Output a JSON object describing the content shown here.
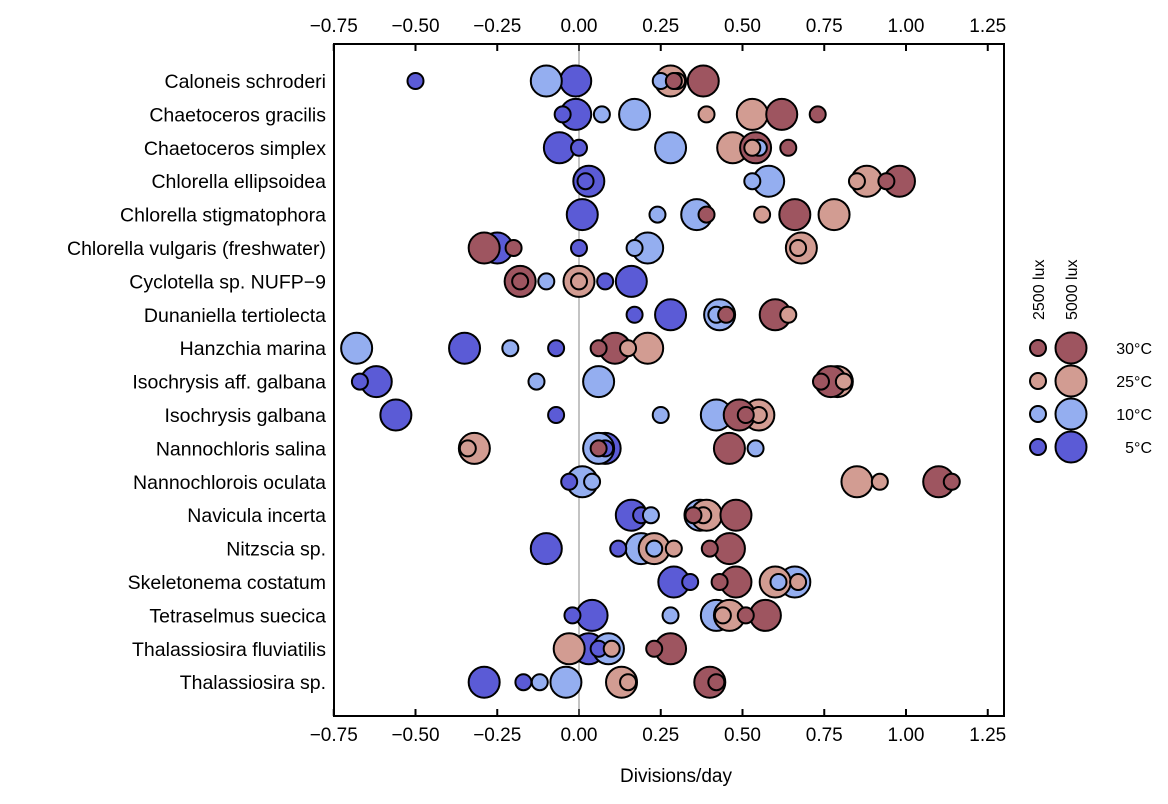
{
  "chart_data": {
    "type": "scatter",
    "title": "",
    "xlabel": "Divisions/day",
    "ylabel": "",
    "xlim": [
      -0.75,
      1.3
    ],
    "x_ticks": [
      "−0.75",
      "−0.50",
      "−0.25",
      "0.00",
      "0.25",
      "0.50",
      "0.75",
      "1.00",
      "1.25"
    ],
    "x_tick_values": [
      -0.75,
      -0.5,
      -0.25,
      0,
      0.25,
      0.5,
      0.75,
      1.0,
      1.25
    ],
    "reference_line_x": 0,
    "grid": false,
    "legend": {
      "placement": "right",
      "size_headers": [
        "2500 lux",
        "5000 lux"
      ],
      "entries": [
        {
          "label": "30°C",
          "key": "30",
          "color": "#9e5560"
        },
        {
          "label": "25°C",
          "key": "25",
          "color": "#d29c92"
        },
        {
          "label": "10°C",
          "key": "10",
          "color": "#94aef0"
        },
        {
          "label": "5°C",
          "key": "5",
          "color": "#5b5bd6"
        }
      ]
    },
    "categories": [
      "Caloneis schroderi",
      "Chaetoceros gracilis",
      "Chaetoceros simplex",
      "Chlorella ellipsoidea",
      "Chlorella stigmatophora",
      "Chlorella vulgaris (freshwater)",
      "Cyclotella sp. NUFP−9",
      "Dunaniella tertiolecta",
      "Hanzchia marina",
      "Isochrysis aff. galbana",
      "Isochrysis galbana",
      "Nannochloris salina",
      "Nannochlorois oculata",
      "Navicula incerta",
      "Nitzscia sp.",
      "Skeletonema costatum",
      "Tetraselmus suecica",
      "Thalassiosira fluviatilis",
      "Thalassiosira sp."
    ],
    "series": [
      {
        "name": "5°C, 5000 lux",
        "temp": "5",
        "lux": 5000,
        "values": [
          -0.01,
          -0.01,
          -0.06,
          0.03,
          0.01,
          -0.25,
          0.16,
          0.28,
          -0.35,
          -0.62,
          -0.56,
          0.08,
          null,
          0.16,
          -0.1,
          0.29,
          0.04,
          0.03,
          -0.29
        ]
      },
      {
        "name": "10°C, 5000 lux",
        "temp": "10",
        "lux": 5000,
        "values": [
          -0.1,
          0.17,
          0.28,
          0.58,
          0.36,
          0.21,
          null,
          0.43,
          -0.68,
          0.06,
          0.42,
          0.06,
          0.01,
          0.37,
          0.19,
          0.66,
          0.42,
          0.09,
          -0.04
        ]
      },
      {
        "name": "25°C, 5000 lux",
        "temp": "25",
        "lux": 5000,
        "values": [
          0.28,
          0.53,
          0.47,
          0.88,
          0.78,
          0.68,
          0.0,
          null,
          0.21,
          0.79,
          0.55,
          -0.32,
          0.85,
          0.39,
          0.23,
          0.6,
          0.46,
          -0.03,
          0.13
        ]
      },
      {
        "name": "30°C, 5000 lux",
        "temp": "30",
        "lux": 5000,
        "values": [
          0.38,
          0.62,
          0.54,
          0.98,
          0.66,
          -0.29,
          -0.18,
          0.6,
          0.11,
          0.77,
          0.49,
          0.46,
          1.1,
          0.48,
          0.46,
          0.48,
          0.57,
          0.28,
          0.4
        ]
      },
      {
        "name": "5°C, 2500 lux",
        "temp": "5",
        "lux": 2500,
        "values": [
          -0.5,
          -0.05,
          0.0,
          0.02,
          null,
          0.0,
          0.08,
          0.17,
          -0.07,
          -0.67,
          -0.07,
          0.08,
          -0.03,
          0.19,
          0.12,
          0.34,
          -0.02,
          0.06,
          -0.17
        ]
      },
      {
        "name": "10°C, 2500 lux",
        "temp": "10",
        "lux": 2500,
        "values": [
          0.25,
          0.07,
          0.55,
          0.53,
          0.24,
          0.17,
          -0.1,
          0.42,
          -0.21,
          -0.13,
          0.25,
          0.54,
          0.04,
          0.22,
          0.23,
          0.61,
          0.28,
          null,
          -0.12
        ]
      },
      {
        "name": "25°C, 2500 lux",
        "temp": "25",
        "lux": 2500,
        "values": [
          0.3,
          0.39,
          0.53,
          0.85,
          0.56,
          0.67,
          0.0,
          0.64,
          0.15,
          0.81,
          0.55,
          -0.34,
          0.92,
          0.38,
          0.29,
          0.67,
          0.44,
          0.1,
          0.15
        ]
      },
      {
        "name": "30°C, 2500 lux",
        "temp": "30",
        "lux": 2500,
        "values": [
          0.29,
          0.73,
          0.64,
          0.94,
          0.39,
          -0.2,
          -0.18,
          0.45,
          0.06,
          0.74,
          0.51,
          0.06,
          1.14,
          0.35,
          0.4,
          0.43,
          0.51,
          0.23,
          0.42
        ]
      }
    ]
  }
}
